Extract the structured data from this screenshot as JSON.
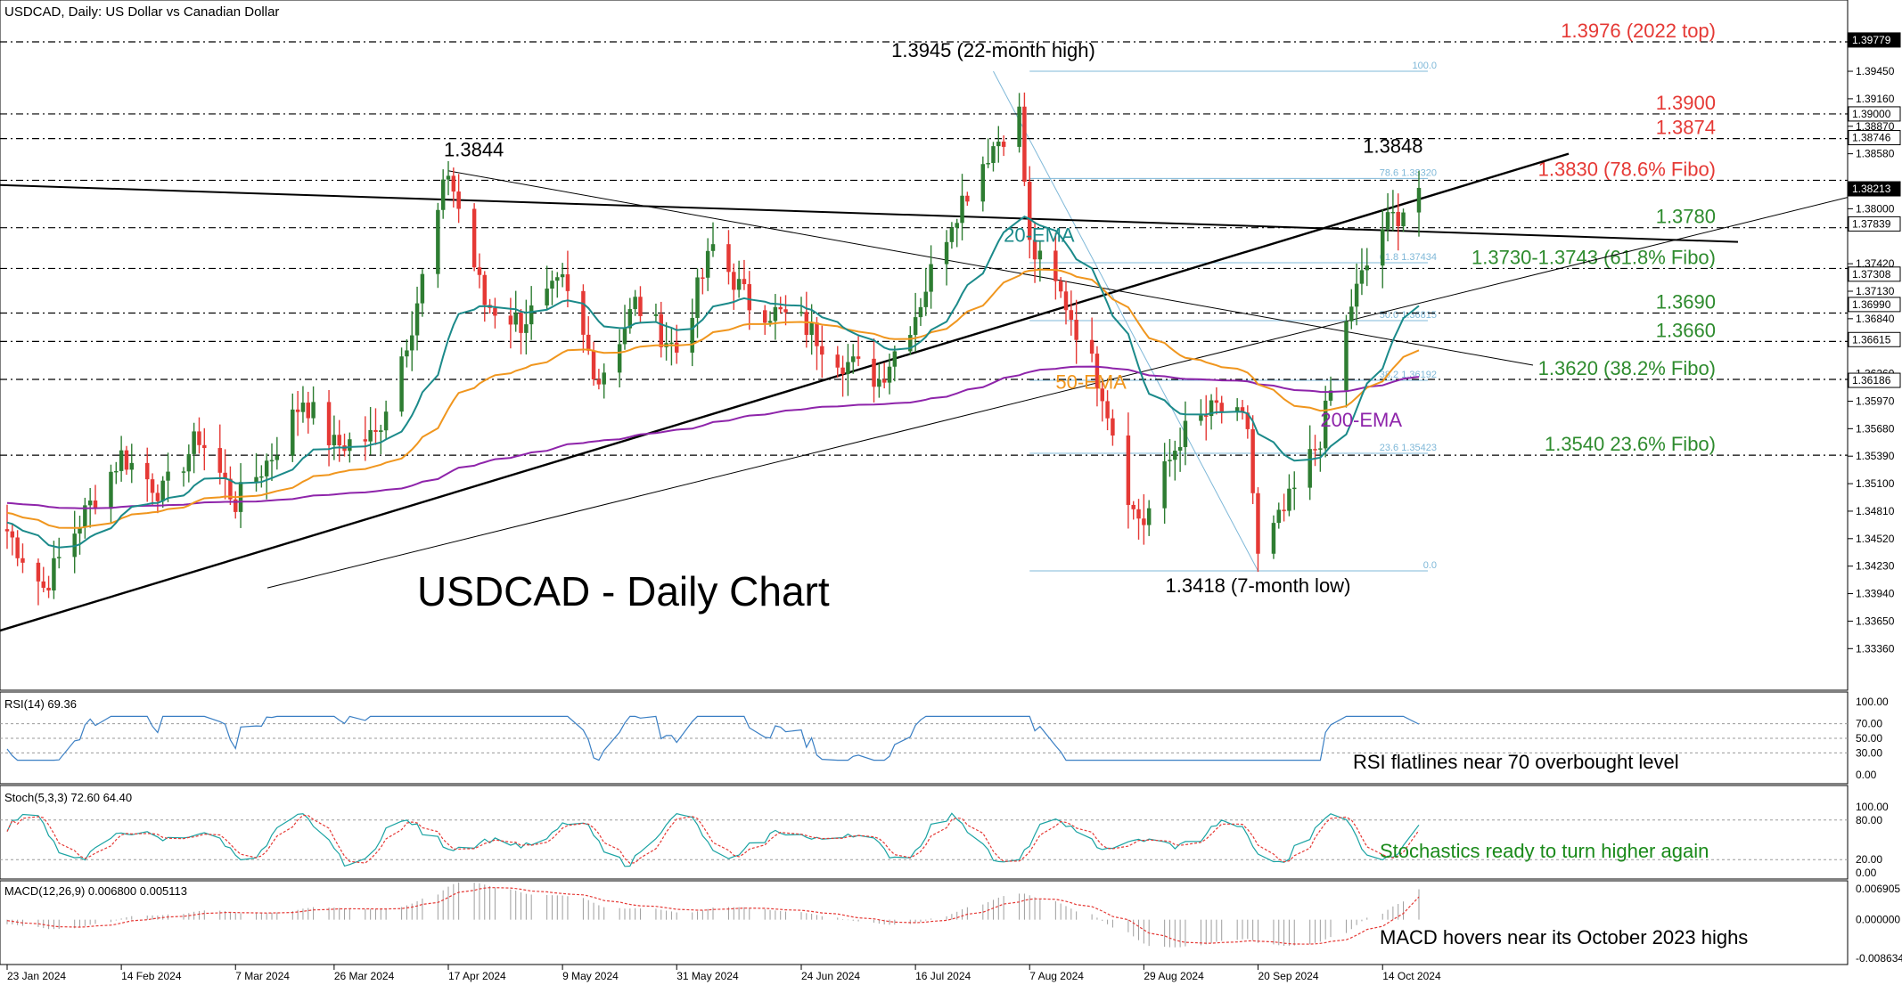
{
  "colors": {
    "bull": "#2e7d32",
    "bear": "#e53935",
    "ema20": "#1b8a8a",
    "ema50": "#f0961e",
    "ema200": "#8e24aa",
    "resistance": "#e53935",
    "support": "#2e8b2e",
    "fibo": "#7fb8d8",
    "rsi": "#3a7fc4",
    "stoch_main": "#1aa3a3",
    "stoch_signal": "#e53935",
    "macd_signal": "#e53935",
    "macd_hist": "#9e9e9e"
  },
  "chart_data": {
    "type": "candlestick",
    "header": "USDCAD, Daily:  US Dollar vs Canadian Dollar",
    "title": "USDCAD - Daily Chart",
    "ylim": [
      1.3325,
      1.3992
    ],
    "x_ticks": [
      "23 Jan 2024",
      "14 Feb 2024",
      "7 Mar 2024",
      "26 Mar 2024",
      "17 Apr 2024",
      "9 May 2024",
      "31 May 2024",
      "24 Jun 2024",
      "16 Jul 2024",
      "7 Aug 2024",
      "29 Aug 2024",
      "20 Sep 2024",
      "14 Oct 2024"
    ],
    "y_ticks": [
      "1.39779",
      "1.39450",
      "1.39160",
      "1.38870",
      "1.38580",
      "1.38000",
      "1.37420",
      "1.37130",
      "1.36840",
      "1.36260",
      "1.35970",
      "1.35680",
      "1.35390",
      "1.35100",
      "1.34810",
      "1.34520",
      "1.34230",
      "1.33940",
      "1.33650",
      "1.33360"
    ],
    "price_tags": [
      {
        "label": "1.39779",
        "value": 1.3978,
        "dark": true
      },
      {
        "label": "1.39000",
        "value": 1.39,
        "dark": false
      },
      {
        "label": "1.38746",
        "value": 1.3875,
        "dark": false
      },
      {
        "label": "1.38213",
        "value": 1.3821,
        "dark": true
      },
      {
        "label": "1.37839",
        "value": 1.3784,
        "dark": false
      },
      {
        "label": "1.37308",
        "value": 1.3731,
        "dark": false
      },
      {
        "label": "1.36990",
        "value": 1.3699,
        "dark": false
      },
      {
        "label": "1.36615",
        "value": 1.3662,
        "dark": false
      },
      {
        "label": "1.36186",
        "value": 1.3619,
        "dark": false
      }
    ],
    "close_series": [
      {
        "date": "23 Jan 2024",
        "close": 1.346
      },
      {
        "date": "30 Jan 2024",
        "close": 1.34
      },
      {
        "date": "6 Feb 2024",
        "close": 1.347
      },
      {
        "date": "14 Feb 2024",
        "close": 1.354
      },
      {
        "date": "22 Feb 2024",
        "close": 1.35
      },
      {
        "date": "29 Feb 2024",
        "close": 1.356
      },
      {
        "date": "7 Mar 2024",
        "close": 1.349
      },
      {
        "date": "14 Mar 2024",
        "close": 1.354
      },
      {
        "date": "20 Mar 2024",
        "close": 1.36
      },
      {
        "date": "26 Mar 2024",
        "close": 1.355
      },
      {
        "date": "3 Apr 2024",
        "close": 1.356
      },
      {
        "date": "10 Apr 2024",
        "close": 1.368
      },
      {
        "date": "17 Apr 2024",
        "close": 1.384
      },
      {
        "date": "24 Apr 2024",
        "close": 1.37
      },
      {
        "date": "1 May 2024",
        "close": 1.368
      },
      {
        "date": "9 May 2024",
        "close": 1.372
      },
      {
        "date": "16 May 2024",
        "close": 1.362
      },
      {
        "date": "23 May 2024",
        "close": 1.37
      },
      {
        "date": "31 May 2024",
        "close": 1.365
      },
      {
        "date": "7 Jun 2024",
        "close": 1.376
      },
      {
        "date": "14 Jun 2024",
        "close": 1.37
      },
      {
        "date": "24 Jun 2024",
        "close": 1.368
      },
      {
        "date": "2 Jul 2024",
        "close": 1.364
      },
      {
        "date": "9 Jul 2024",
        "close": 1.362
      },
      {
        "date": "16 Jul 2024",
        "close": 1.369
      },
      {
        "date": "23 Jul 2024",
        "close": 1.379
      },
      {
        "date": "30 Jul 2024",
        "close": 1.386
      },
      {
        "date": "5 Aug 2024",
        "close": 1.39
      },
      {
        "date": "7 Aug 2024",
        "close": 1.376
      },
      {
        "date": "14 Aug 2024",
        "close": 1.37
      },
      {
        "date": "21 Aug 2024",
        "close": 1.361
      },
      {
        "date": "27 Aug 2024",
        "close": 1.348
      },
      {
        "date": "29 Aug 2024",
        "close": 1.347
      },
      {
        "date": "5 Sep 2024",
        "close": 1.356
      },
      {
        "date": "12 Sep 2024",
        "close": 1.359
      },
      {
        "date": "18 Sep 2024",
        "close": 1.357
      },
      {
        "date": "20 Sep 2024",
        "close": 1.343
      },
      {
        "date": "26 Sep 2024",
        "close": 1.349
      },
      {
        "date": "2 Oct 2024",
        "close": 1.356
      },
      {
        "date": "8 Oct 2024",
        "close": 1.37
      },
      {
        "date": "14 Oct 2024",
        "close": 1.378
      },
      {
        "date": "18 Oct 2024",
        "close": 1.38
      },
      {
        "date": "21 Oct 2024",
        "close": 1.3822
      }
    ],
    "horizontal_levels": [
      {
        "label": "1.3976 (2022 top)",
        "value": 1.3976,
        "role": "resistance"
      },
      {
        "label": "1.3900",
        "value": 1.39,
        "role": "resistance"
      },
      {
        "label": "1.3874",
        "value": 1.3874,
        "role": "resistance"
      },
      {
        "label": "1.3830 (78.6% Fibo)",
        "value": 1.383,
        "role": "resistance"
      },
      {
        "label": "1.3780",
        "value": 1.378,
        "role": "support"
      },
      {
        "label": "1.3730-1.3743 (61.8% Fibo)",
        "value": 1.3737,
        "role": "support"
      },
      {
        "label": "1.3690",
        "value": 1.369,
        "role": "support"
      },
      {
        "label": "1.3660",
        "value": 1.366,
        "role": "support"
      },
      {
        "label": "1.3620 (38.2% Fibo)",
        "value": 1.362,
        "role": "support"
      },
      {
        "label": "1.3540 23.6% Fibo)",
        "value": 1.354,
        "role": "support"
      }
    ],
    "fibonacci": [
      {
        "label": "100.0",
        "value": 1.3945
      },
      {
        "label": "78.6 1.38320",
        "value": 1.3832
      },
      {
        "label": "61.8 1.37434",
        "value": 1.3743
      },
      {
        "label": "50.0 1.36815",
        "value": 1.3682
      },
      {
        "label": "38.2 1.36192",
        "value": 1.3619
      },
      {
        "label": "23.6 1.35423",
        "value": 1.3542
      },
      {
        "label": "0.0",
        "value": 1.3418
      }
    ],
    "annotations": [
      {
        "text": "1.3945 (22-month high)",
        "date": "31 Jul 2024",
        "value": 1.3945
      },
      {
        "text": "1.3844",
        "date": "17 Apr 2024",
        "value": 1.3844
      },
      {
        "text": "1.3848",
        "date": "16 Oct 2024",
        "value": 1.3848
      },
      {
        "text": "1.3418 (7-month low)",
        "date": "20 Sep 2024",
        "value": 1.3418
      }
    ],
    "moving_averages": [
      {
        "name": "20-EMA",
        "last": 1.369
      },
      {
        "name": "50-EMA",
        "last": 1.3645
      },
      {
        "name": "200-EMA",
        "last": 1.3618
      }
    ],
    "indicators": {
      "rsi": {
        "label": "RSI(14) 69.36",
        "last": 69.36,
        "ticks": [
          "100.00",
          "70.00",
          "50.00",
          "30.00",
          "0.00"
        ],
        "note": "RSI flatlines near 70 overbought level"
      },
      "stoch": {
        "label": "Stoch(5,3,3) 72.60 64.40",
        "main": 72.6,
        "signal": 64.4,
        "ticks": [
          "100.00",
          "80.00",
          "20.00",
          "0.00"
        ],
        "note": "Stochastics ready to turn higher again"
      },
      "macd": {
        "label": "MACD(12,26,9) 0.006800 0.005113",
        "main": 0.0068,
        "signal": 0.005113,
        "ticks": [
          "0.006905",
          "0.000000",
          "-0.008634"
        ],
        "note": "MACD hovers near its October 2023 highs"
      }
    }
  }
}
